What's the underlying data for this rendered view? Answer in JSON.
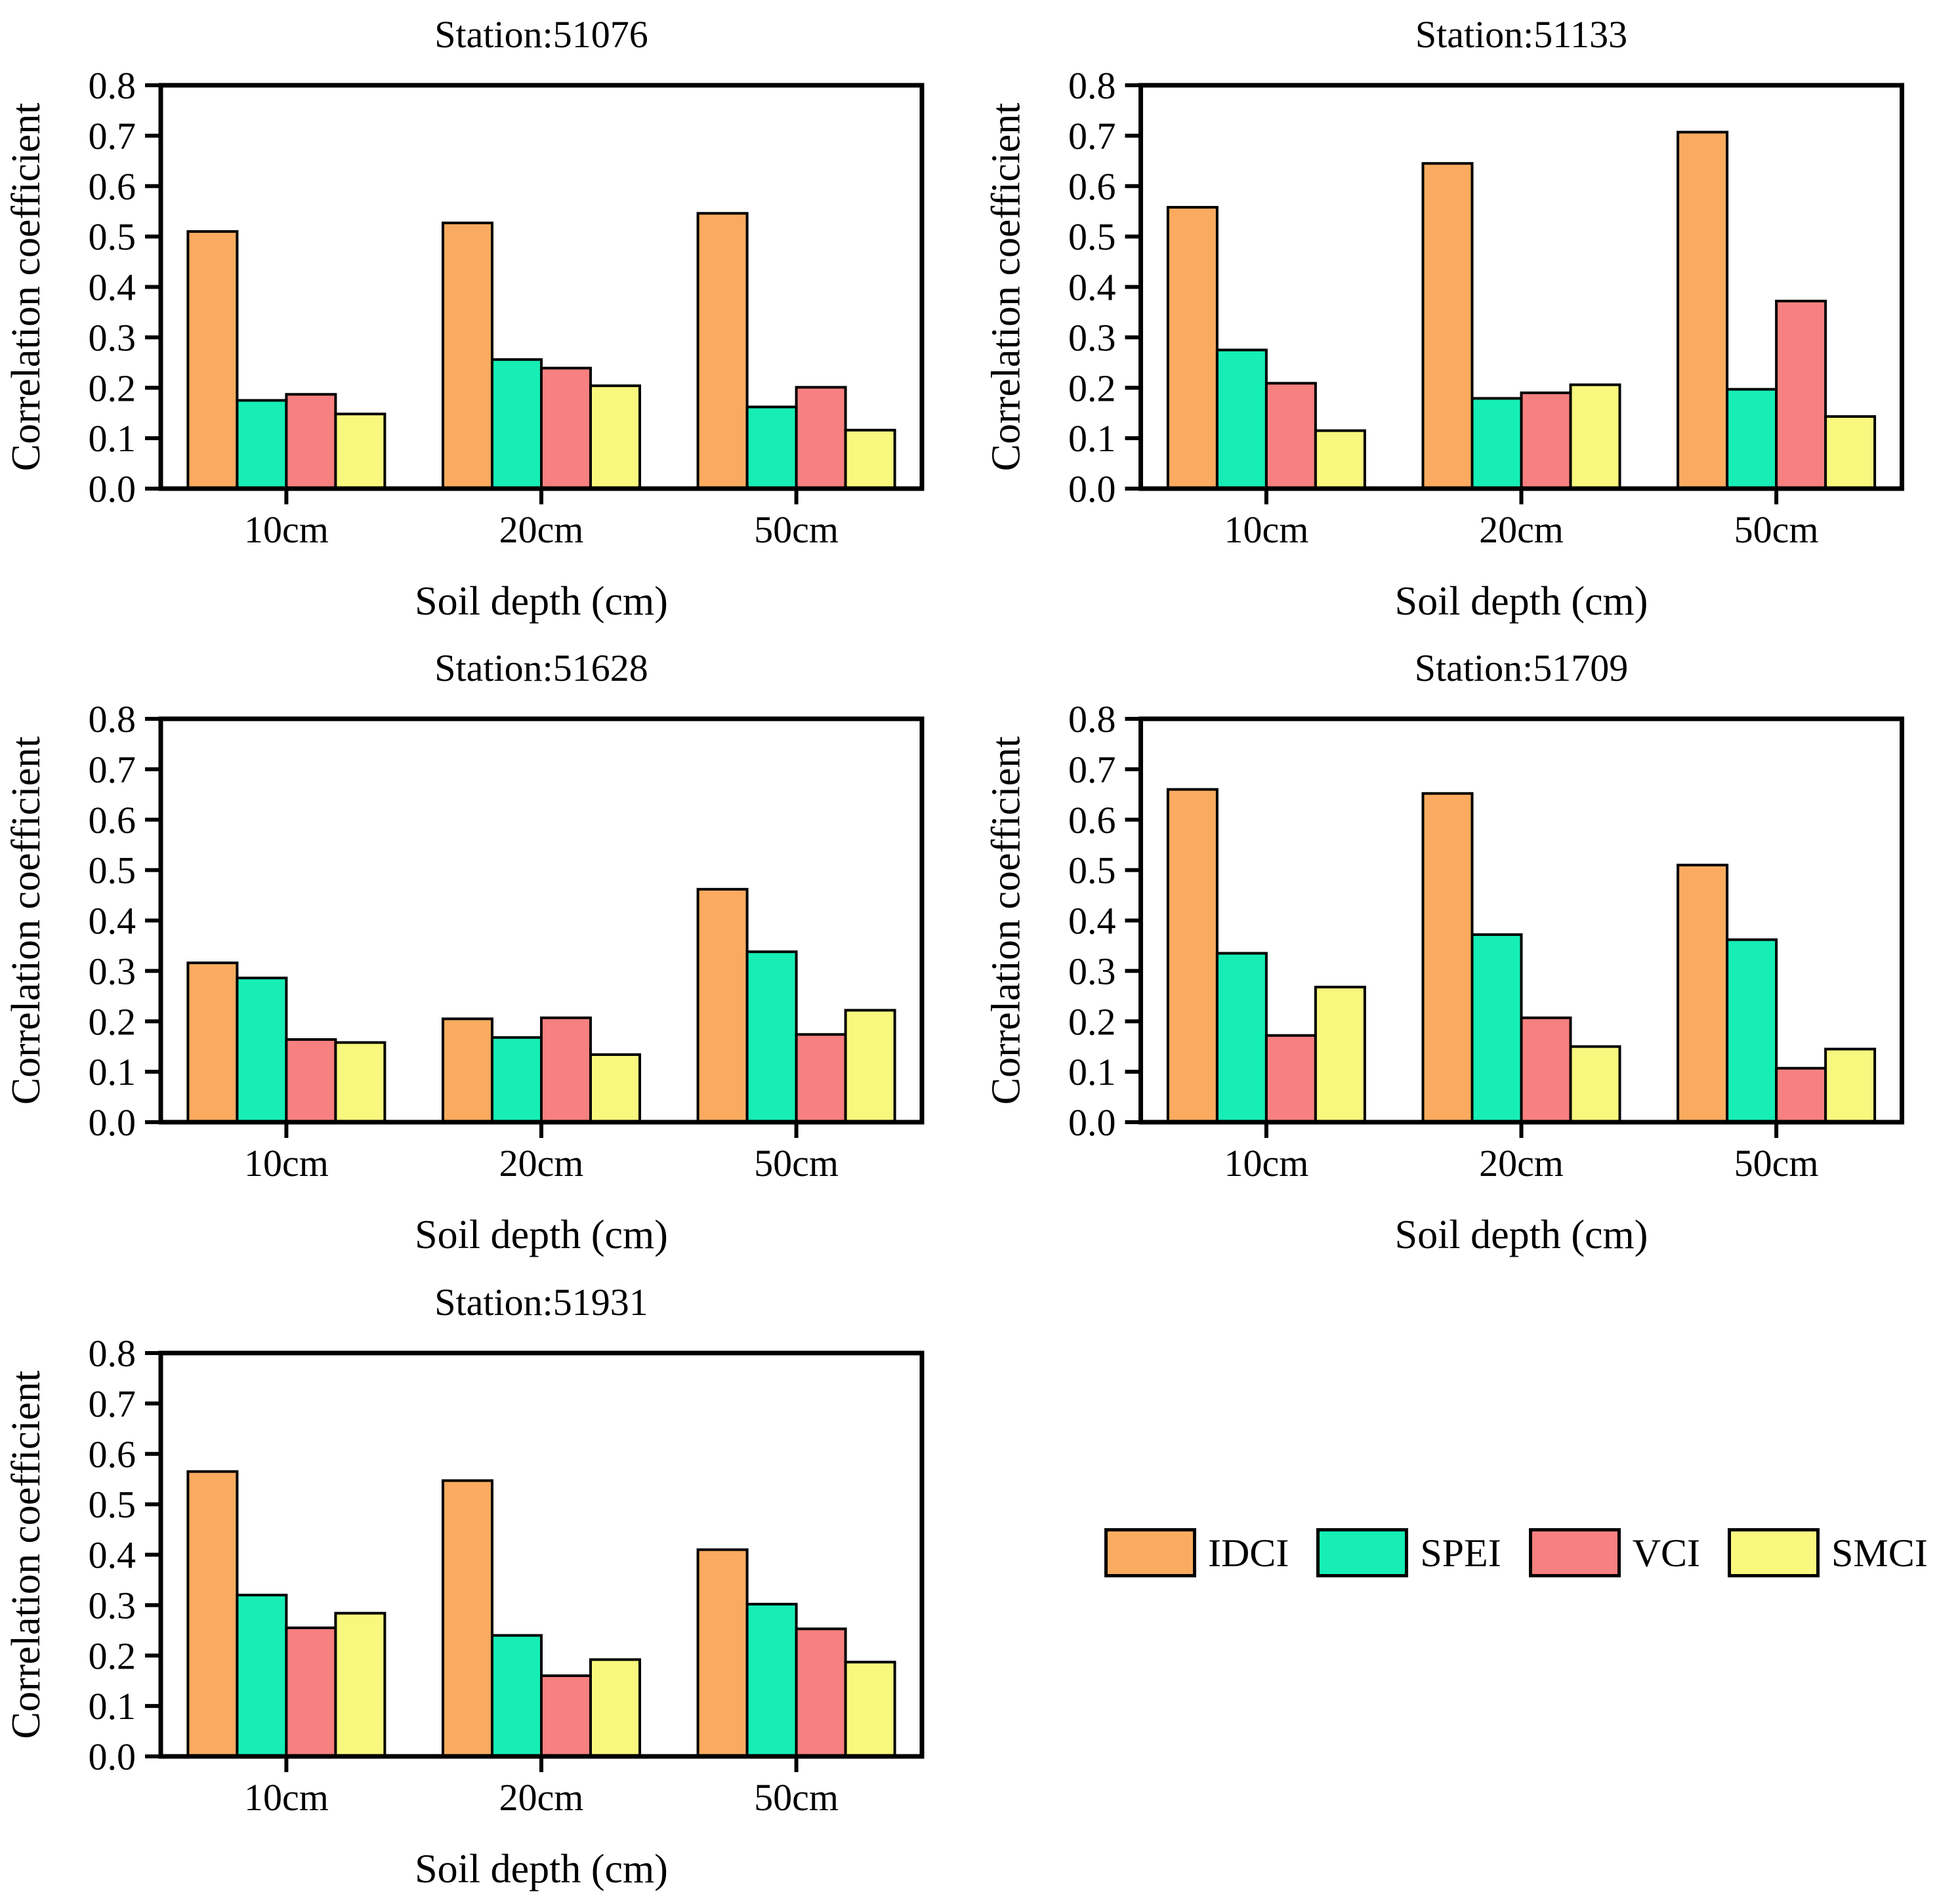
{
  "chart_data": [
    {
      "type": "bar",
      "title": "Station:51076",
      "xlabel": "Soil depth (cm)",
      "ylabel": "Correlation coefficient",
      "ylim": [
        0,
        0.8
      ],
      "ytick_step": 0.1,
      "grid": false,
      "categories": [
        "10cm",
        "20cm",
        "50cm"
      ],
      "series": [
        {
          "name": "IDCI",
          "color": "#FAAB60",
          "values": [
            0.51,
            0.527,
            0.546
          ]
        },
        {
          "name": "SPEI",
          "color": "#16EEB6",
          "values": [
            0.175,
            0.256,
            0.162
          ]
        },
        {
          "name": "VCI",
          "color": "#F78080",
          "values": [
            0.187,
            0.239,
            0.201
          ]
        },
        {
          "name": "SMCI",
          "color": "#F8F87E",
          "values": [
            0.148,
            0.204,
            0.116
          ]
        }
      ]
    },
    {
      "type": "bar",
      "title": "Station:51133",
      "xlabel": "Soil depth (cm)",
      "ylabel": "Correlation coefficient",
      "ylim": [
        0,
        0.8
      ],
      "ytick_step": 0.1,
      "grid": false,
      "categories": [
        "10cm",
        "20cm",
        "50cm"
      ],
      "series": [
        {
          "name": "IDCI",
          "color": "#FAAB60",
          "values": [
            0.558,
            0.645,
            0.707
          ]
        },
        {
          "name": "SPEI",
          "color": "#16EEB6",
          "values": [
            0.275,
            0.179,
            0.197
          ]
        },
        {
          "name": "VCI",
          "color": "#F78080",
          "values": [
            0.209,
            0.19,
            0.372
          ]
        },
        {
          "name": "SMCI",
          "color": "#F8F87E",
          "values": [
            0.115,
            0.206,
            0.143
          ]
        }
      ]
    },
    {
      "type": "bar",
      "title": "Station:51628",
      "xlabel": "Soil depth (cm)",
      "ylabel": "Correlation coefficient",
      "ylim": [
        0,
        0.8
      ],
      "ytick_step": 0.1,
      "grid": false,
      "categories": [
        "10cm",
        "20cm",
        "50cm"
      ],
      "series": [
        {
          "name": "IDCI",
          "color": "#FAAB60",
          "values": [
            0.316,
            0.205,
            0.462
          ]
        },
        {
          "name": "SPEI",
          "color": "#16EEB6",
          "values": [
            0.286,
            0.168,
            0.338
          ]
        },
        {
          "name": "VCI",
          "color": "#F78080",
          "values": [
            0.164,
            0.207,
            0.174
          ]
        },
        {
          "name": "SMCI",
          "color": "#F8F87E",
          "values": [
            0.158,
            0.134,
            0.222
          ]
        }
      ]
    },
    {
      "type": "bar",
      "title": "Station:51709",
      "xlabel": "Soil depth (cm)",
      "ylabel": "Correlation coefficient",
      "ylim": [
        0,
        0.8
      ],
      "ytick_step": 0.1,
      "grid": false,
      "categories": [
        "10cm",
        "20cm",
        "50cm"
      ],
      "series": [
        {
          "name": "IDCI",
          "color": "#FAAB60",
          "values": [
            0.66,
            0.652,
            0.51
          ]
        },
        {
          "name": "SPEI",
          "color": "#16EEB6",
          "values": [
            0.335,
            0.372,
            0.362
          ]
        },
        {
          "name": "VCI",
          "color": "#F78080",
          "values": [
            0.172,
            0.207,
            0.107
          ]
        },
        {
          "name": "SMCI",
          "color": "#F8F87E",
          "values": [
            0.268,
            0.15,
            0.145
          ]
        }
      ]
    },
    {
      "type": "bar",
      "title": "Station:51931",
      "xlabel": "Soil depth (cm)",
      "ylabel": "Correlation coefficient",
      "ylim": [
        0,
        0.8
      ],
      "ytick_step": 0.1,
      "grid": false,
      "categories": [
        "10cm",
        "20cm",
        "50cm"
      ],
      "series": [
        {
          "name": "IDCI",
          "color": "#FAAB60",
          "values": [
            0.565,
            0.547,
            0.41
          ]
        },
        {
          "name": "SPEI",
          "color": "#16EEB6",
          "values": [
            0.32,
            0.24,
            0.302
          ]
        },
        {
          "name": "VCI",
          "color": "#F78080",
          "values": [
            0.255,
            0.16,
            0.253
          ]
        },
        {
          "name": "SMCI",
          "color": "#F8F87E",
          "values": [
            0.284,
            0.192,
            0.187
          ]
        }
      ]
    }
  ],
  "legend": {
    "position": "bottom-right-cell",
    "entries": [
      {
        "label": "IDCI",
        "color": "#FAAB60"
      },
      {
        "label": "SPEI",
        "color": "#16EEB6"
      },
      {
        "label": "VCI",
        "color": "#F78080"
      },
      {
        "label": "SMCI",
        "color": "#F8F87E"
      }
    ]
  },
  "style_colors": {
    "axis": "#000000",
    "text": "#000000",
    "background": "#ffffff"
  }
}
